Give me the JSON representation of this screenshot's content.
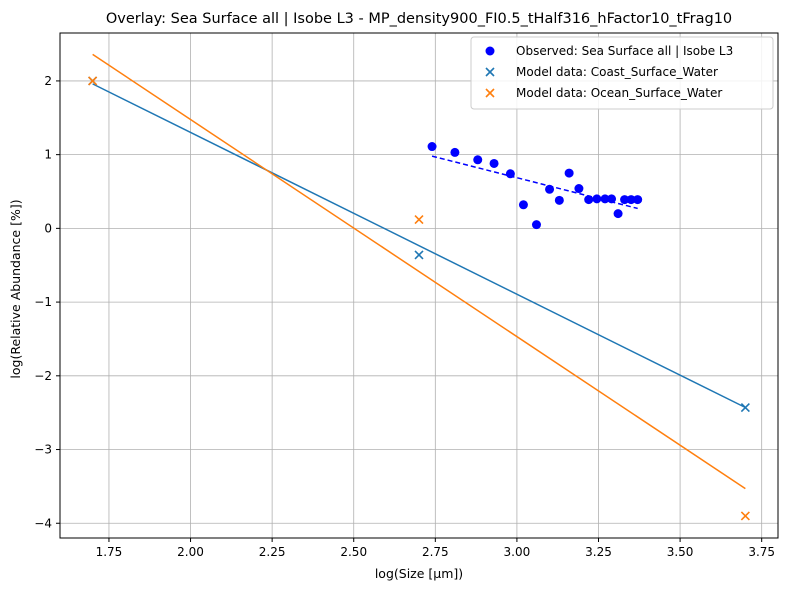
{
  "chart_data": {
    "type": "scatter",
    "title": "Overlay: Sea Surface all | Isobe L3 - MP_density900_FI0.5_tHalf316_hFactor10_tFrag10",
    "xlabel": "log(Size [μm])",
    "ylabel": "log(Relative Abundance [%])",
    "xlim": [
      1.6,
      3.8
    ],
    "ylim": [
      -4.2,
      2.65
    ],
    "x_ticks": [
      1.75,
      2.0,
      2.25,
      2.5,
      2.75,
      3.0,
      3.25,
      3.5,
      3.75
    ],
    "x_tick_labels": [
      "1.75",
      "2.00",
      "2.25",
      "2.50",
      "2.75",
      "3.00",
      "3.25",
      "3.50",
      "3.75"
    ],
    "y_ticks": [
      -4,
      -3,
      -2,
      -1,
      0,
      1,
      2
    ],
    "y_tick_labels": [
      "−4",
      "−3",
      "−2",
      "−1",
      "0",
      "1",
      "2"
    ],
    "grid": true,
    "legend_position": "top-right",
    "series": [
      {
        "name": "Observed: Sea Surface all | Isobe L3",
        "kind": "scatter",
        "marker": "circle",
        "color": "#0000ff",
        "points": [
          [
            2.74,
            1.11
          ],
          [
            2.81,
            1.03
          ],
          [
            2.88,
            0.93
          ],
          [
            2.93,
            0.88
          ],
          [
            2.98,
            0.74
          ],
          [
            3.02,
            0.32
          ],
          [
            3.06,
            0.05
          ],
          [
            3.1,
            0.53
          ],
          [
            3.13,
            0.38
          ],
          [
            3.16,
            0.75
          ],
          [
            3.19,
            0.54
          ],
          [
            3.22,
            0.39
          ],
          [
            3.245,
            0.4
          ],
          [
            3.27,
            0.4
          ],
          [
            3.29,
            0.4
          ],
          [
            3.31,
            0.2
          ],
          [
            3.33,
            0.39
          ],
          [
            3.35,
            0.39
          ],
          [
            3.37,
            0.39
          ]
        ]
      },
      {
        "name": "Model data: Coast_Surface_Water",
        "kind": "scatter",
        "marker": "x",
        "color": "#1f77b4",
        "points": [
          [
            1.7,
            2.0
          ],
          [
            2.7,
            -0.36
          ],
          [
            3.7,
            -2.43
          ]
        ]
      },
      {
        "name": "Model data: Ocean_Surface_Water",
        "kind": "scatter",
        "marker": "x",
        "color": "#ff7f0e",
        "points": [
          [
            1.7,
            2.0
          ],
          [
            2.7,
            0.12
          ],
          [
            3.7,
            -3.9
          ]
        ]
      }
    ],
    "fit_lines": [
      {
        "color": "#0000ff",
        "dashed": true,
        "points": [
          [
            2.74,
            0.98
          ],
          [
            3.37,
            0.27
          ]
        ]
      },
      {
        "color": "#1f77b4",
        "dashed": false,
        "points": [
          [
            1.7,
            1.96
          ],
          [
            3.7,
            -2.43
          ]
        ]
      },
      {
        "color": "#ff7f0e",
        "dashed": false,
        "points": [
          [
            1.7,
            2.36
          ],
          [
            3.7,
            -3.53
          ]
        ]
      }
    ]
  }
}
